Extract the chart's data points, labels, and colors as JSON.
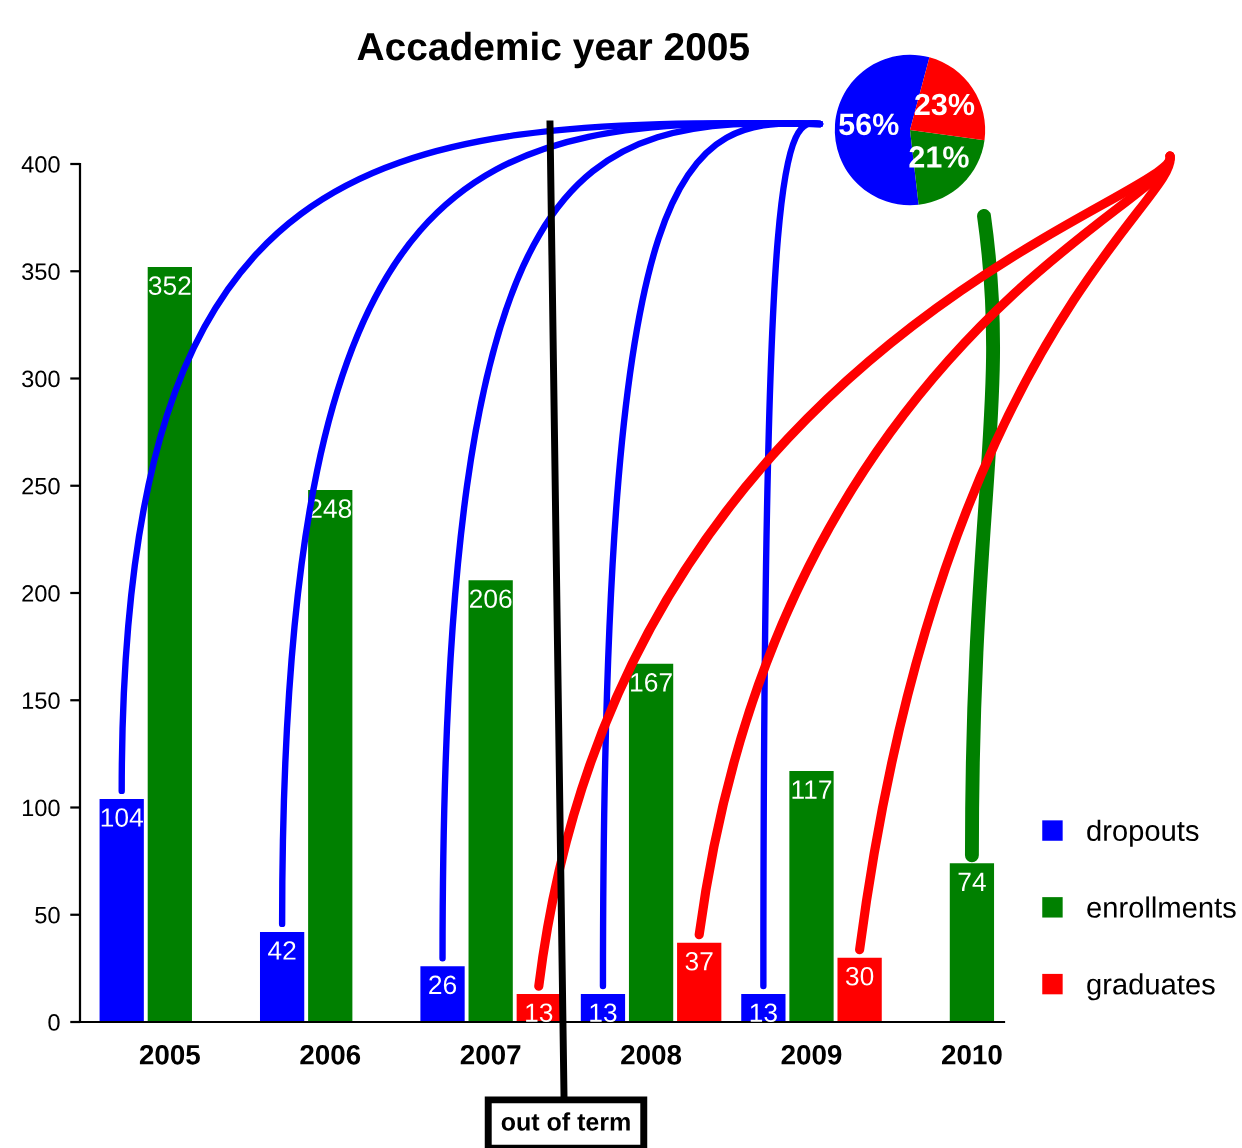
{
  "chart_data": [
    {
      "type": "bar",
      "categories": [
        "2005",
        "2006",
        "2007",
        "2008",
        "2009",
        "2010"
      ],
      "series": [
        {
          "name": "dropouts",
          "color": "#0000ff",
          "values": [
            104,
            42,
            26,
            13,
            13,
            null
          ]
        },
        {
          "name": "enrollments",
          "color": "#008000",
          "values": [
            352,
            248,
            206,
            167,
            117,
            74
          ]
        },
        {
          "name": "graduates",
          "color": "#ff0000",
          "values": [
            null,
            null,
            13,
            37,
            30,
            null
          ]
        }
      ],
      "ylim": [
        0,
        400
      ],
      "yticks": [
        0,
        50,
        100,
        150,
        200,
        250,
        300,
        350,
        400
      ],
      "grid": false,
      "legend": "right",
      "data_labels": true,
      "annotations": [
        "out of term"
      ]
    },
    {
      "type": "pie",
      "title": "Accademic year 2005",
      "categories": [
        null,
        null,
        null
      ],
      "values": [
        56,
        21,
        23
      ],
      "colors": [
        "#0000ff",
        "#008000",
        "#ff0000"
      ],
      "value_labels": [
        "56%",
        "21%",
        "23%"
      ]
    }
  ]
}
